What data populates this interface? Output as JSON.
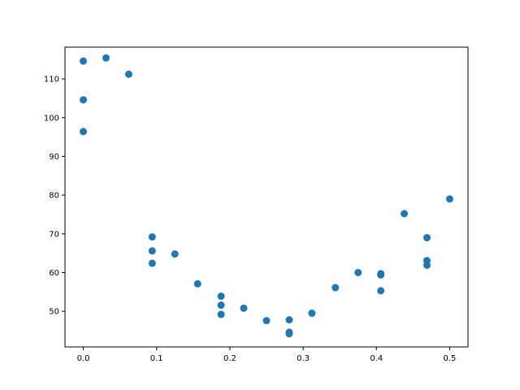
{
  "chart_data": {
    "type": "scatter",
    "title": "",
    "xlabel": "",
    "ylabel": "",
    "xlim": [
      -0.025,
      0.525
    ],
    "ylim": [
      40.8,
      118.2
    ],
    "x_ticks": [
      0.0,
      0.1,
      0.2,
      0.3,
      0.4,
      0.5
    ],
    "x_tick_labels": [
      "0.0",
      "0.1",
      "0.2",
      "0.3",
      "0.4",
      "0.5"
    ],
    "y_ticks": [
      50,
      60,
      70,
      80,
      90,
      100,
      110
    ],
    "y_tick_labels": [
      "50",
      "60",
      "70",
      "80",
      "90",
      "100",
      "110"
    ],
    "grid": false,
    "color": "#1f77b4",
    "series": [
      {
        "points": [
          [
            0.0,
            114.6
          ],
          [
            0.0,
            104.6
          ],
          [
            0.0,
            96.4
          ],
          [
            0.031,
            115.4
          ],
          [
            0.062,
            111.2
          ],
          [
            0.094,
            69.2
          ],
          [
            0.094,
            65.6
          ],
          [
            0.094,
            62.4
          ],
          [
            0.125,
            64.8
          ],
          [
            0.156,
            57.1
          ],
          [
            0.188,
            53.9
          ],
          [
            0.188,
            51.6
          ],
          [
            0.188,
            49.2
          ],
          [
            0.219,
            50.8
          ],
          [
            0.25,
            47.6
          ],
          [
            0.281,
            47.8
          ],
          [
            0.281,
            44.6
          ],
          [
            0.281,
            44.2
          ],
          [
            0.312,
            49.5
          ],
          [
            0.344,
            56.1
          ],
          [
            0.375,
            60.0
          ],
          [
            0.406,
            59.7
          ],
          [
            0.406,
            59.4
          ],
          [
            0.406,
            55.3
          ],
          [
            0.438,
            75.2
          ],
          [
            0.469,
            69.0
          ],
          [
            0.469,
            63.1
          ],
          [
            0.469,
            61.9
          ],
          [
            0.5,
            79.0
          ]
        ]
      }
    ]
  }
}
